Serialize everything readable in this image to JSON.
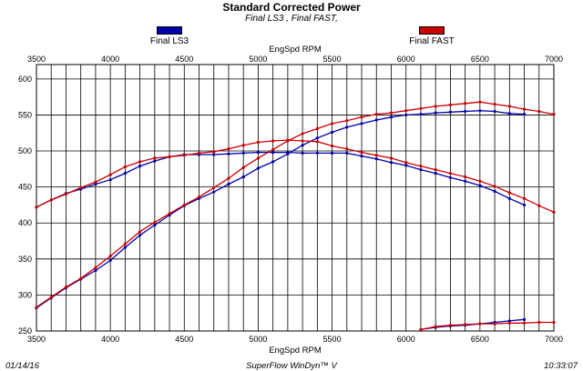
{
  "chart_data": {
    "type": "line",
    "title": "Standard Corrected Power",
    "subtitle": "Final LS3 , Final FAST,",
    "xlabel": "EngSpd RPM",
    "x_ticks": [
      "3500",
      "4000",
      "4500",
      "5000",
      "5500",
      "6000",
      "6500",
      "7000"
    ],
    "y_ticks": [
      "250",
      "300",
      "350",
      "400",
      "450",
      "500",
      "550",
      "600"
    ],
    "xlim": [
      3500,
      7000
    ],
    "ylim": [
      250,
      620
    ],
    "grid": true,
    "legend_placement": "top",
    "series": [
      {
        "name": "Final LS3",
        "color": "#0000aa",
        "curves": [
          {
            "x": [
              3500,
              3600,
              3700,
              3800,
              3900,
              4000,
              4100,
              4200,
              4300,
              4400,
              4500,
              4600,
              4700,
              4800,
              4900,
              5000,
              5100,
              5200,
              5300,
              5400,
              5500,
              5600,
              5700,
              5800,
              5900,
              6000,
              6100,
              6200,
              6300,
              6400,
              6500,
              6600,
              6700,
              6800
            ],
            "y": [
              422,
              432,
              441,
              447,
              454,
              460,
              469,
              479,
              486,
              492,
              495,
              495,
              495,
              496,
              497,
              498,
              498,
              498,
              497,
              497,
              497,
              497,
              493,
              489,
              484,
              480,
              474,
              469,
              463,
              458,
              452,
              444,
              434,
              425
            ]
          },
          {
            "x": [
              3500,
              3600,
              3700,
              3800,
              3900,
              4000,
              4100,
              4200,
              4300,
              4400,
              4500,
              4600,
              4700,
              4800,
              4900,
              5000,
              5100,
              5200,
              5300,
              5400,
              5500,
              5600,
              5700,
              5800,
              5900,
              6000,
              6100,
              6200,
              6300,
              6400,
              6500,
              6600,
              6700,
              6800
            ],
            "y": [
              282,
              296,
              310,
              322,
              334,
              348,
              366,
              383,
              397,
              411,
              424,
              434,
              443,
              454,
              464,
              476,
              485,
              496,
              508,
              518,
              526,
              533,
              538,
              543,
              547,
              550,
              551,
              553,
              554,
              555,
              556,
              555,
              552,
              551
            ]
          },
          {
            "x": [
              6100,
              6200,
              6300,
              6400,
              6500,
              6600,
              6700,
              6800
            ],
            "y": [
              252,
              255,
              257,
              258,
              260,
              262,
              264,
              266
            ]
          }
        ]
      },
      {
        "name": "Final FAST",
        "color": "#cc0000",
        "curves": [
          {
            "x": [
              3500,
              3600,
              3700,
              3800,
              3900,
              4000,
              4100,
              4200,
              4300,
              4400,
              4500,
              4600,
              4700,
              4800,
              4900,
              5000,
              5100,
              5200,
              5300,
              5400,
              5500,
              5600,
              5700,
              5800,
              5900,
              6000,
              6100,
              6200,
              6300,
              6400,
              6500,
              6600,
              6700,
              6800,
              6900,
              7000
            ],
            "y": [
              422,
              432,
              440,
              449,
              457,
              467,
              478,
              485,
              490,
              492,
              494,
              497,
              499,
              503,
              508,
              512,
              514,
              515,
              514,
              513,
              507,
              503,
              498,
              494,
              490,
              484,
              479,
              474,
              469,
              464,
              458,
              451,
              442,
              434,
              424,
              415
            ]
          },
          {
            "x": [
              3500,
              3600,
              3700,
              3800,
              3900,
              4000,
              4100,
              4200,
              4300,
              4400,
              4500,
              4600,
              4700,
              4800,
              4900,
              5000,
              5100,
              5200,
              5300,
              5400,
              5500,
              5600,
              5700,
              5800,
              5900,
              6000,
              6100,
              6200,
              6300,
              6400,
              6500,
              6600,
              6700,
              6800,
              6900,
              7000
            ],
            "y": [
              283,
              297,
              311,
              323,
              338,
              354,
              371,
              388,
              401,
              413,
              425,
              436,
              449,
              462,
              477,
              490,
              502,
              514,
              524,
              531,
              538,
              542,
              547,
              551,
              553,
              556,
              559,
              562,
              564,
              566,
              568,
              565,
              562,
              558,
              555,
              551
            ]
          },
          {
            "x": [
              6100,
              6200,
              6300,
              6400,
              6500,
              6600,
              6700,
              6800,
              6900,
              7000
            ],
            "y": [
              252,
              256,
              258,
              259,
              260,
              260,
              261,
              261,
              262,
              262
            ]
          }
        ]
      }
    ]
  },
  "footer": {
    "date": "01/14/16",
    "software": "SuperFlow WinDyn™ V",
    "time": "10:33:07"
  }
}
